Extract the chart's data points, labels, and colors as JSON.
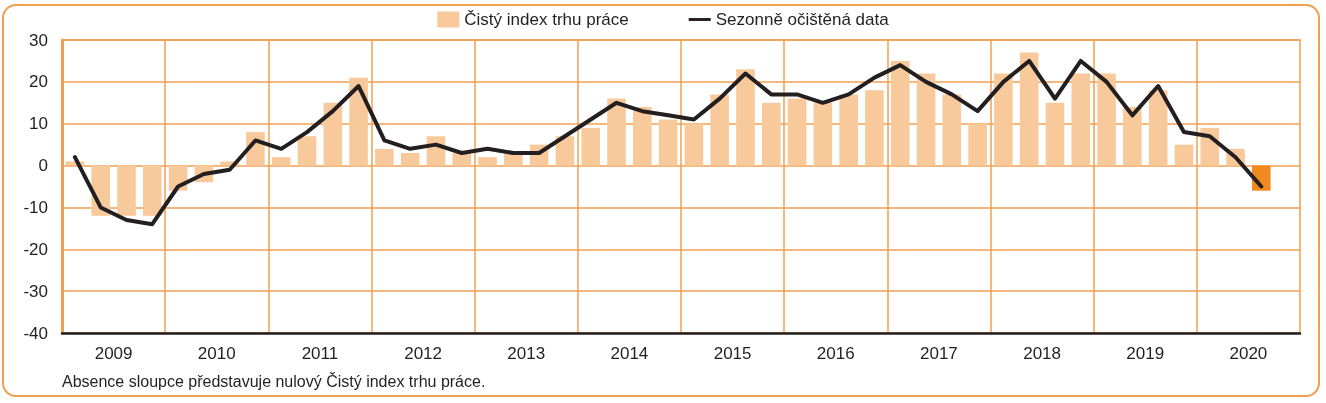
{
  "chart_data": {
    "type": "bar",
    "x": [
      2009.125,
      2009.375,
      2009.625,
      2009.875,
      2010.125,
      2010.375,
      2010.625,
      2010.875,
      2011.125,
      2011.375,
      2011.625,
      2011.875,
      2012.125,
      2012.375,
      2012.625,
      2012.875,
      2013.125,
      2013.375,
      2013.625,
      2013.875,
      2014.125,
      2014.375,
      2014.625,
      2014.875,
      2015.125,
      2015.375,
      2015.625,
      2015.875,
      2016.125,
      2016.375,
      2016.625,
      2016.875,
      2017.125,
      2017.375,
      2017.625,
      2017.875,
      2018.125,
      2018.375,
      2018.625,
      2018.875,
      2019.125,
      2019.375,
      2019.625,
      2019.875,
      2020.125,
      2020.375,
      2020.625
    ],
    "series": [
      {
        "name": "Čistý index trhu práce",
        "color": "#f8c99a",
        "colors": [
          "#f8c99a",
          "#f8c99a",
          "#f8c99a",
          "#f8c99a",
          "#f8c99a",
          "#f8c99a",
          "#f8c99a",
          "#f8c99a",
          "#f8c99a",
          "#f8c99a",
          "#f8c99a",
          "#f8c99a",
          "#f8c99a",
          "#f8c99a",
          "#f8c99a",
          "#f8c99a",
          "#f8c99a",
          "#f8c99a",
          "#f8c99a",
          "#f8c99a",
          "#f8c99a",
          "#f8c99a",
          "#f8c99a",
          "#f8c99a",
          "#f8c99a",
          "#f8c99a",
          "#f8c99a",
          "#f8c99a",
          "#f8c99a",
          "#f8c99a",
          "#f8c99a",
          "#f8c99a",
          "#f8c99a",
          "#f8c99a",
          "#f8c99a",
          "#f8c99a",
          "#f8c99a",
          "#f8c99a",
          "#f8c99a",
          "#f8c99a",
          "#f8c99a",
          "#f8c99a",
          "#f8c99a",
          "#f8c99a",
          "#f8c99a",
          "#f8c99a",
          "#f08a1e"
        ],
        "values": [
          1,
          -12,
          -12,
          -12,
          -6,
          -4,
          1,
          8,
          2,
          7,
          15,
          21,
          4,
          3,
          7,
          3,
          2,
          3,
          5,
          7,
          9,
          16,
          14,
          11,
          10,
          17,
          23,
          15,
          16,
          15,
          17,
          18,
          25,
          22,
          17,
          10,
          22,
          27,
          15,
          22,
          22,
          14,
          18,
          5,
          9,
          4,
          -6
        ]
      },
      {
        "name": "Sezonně očištěná data",
        "type": "line",
        "color": "#231f20",
        "values": [
          2,
          -10,
          -13,
          -14,
          -5,
          -2,
          -1,
          6,
          4,
          8,
          13,
          19,
          6,
          4,
          5,
          3,
          4,
          3,
          3,
          7,
          11,
          15,
          13,
          12,
          11,
          16,
          22,
          17,
          17,
          15,
          17,
          21,
          24,
          20,
          17,
          13,
          20,
          25,
          16,
          25,
          20,
          12,
          19,
          8,
          7,
          2,
          -5
        ]
      }
    ],
    "xlim": [
      2009,
      2021
    ],
    "xticks": [
      {
        "value": 2010,
        "label": null
      },
      {
        "value": 2011,
        "label": null
      },
      {
        "value": 2012,
        "label": null
      },
      {
        "value": 2013,
        "label": null
      },
      {
        "value": 2014,
        "label": null
      },
      {
        "value": 2015,
        "label": null
      },
      {
        "value": 2016,
        "label": null
      },
      {
        "value": 2017,
        "label": null
      },
      {
        "value": 2018,
        "label": null
      },
      {
        "value": 2019,
        "label": null
      },
      {
        "value": 2020,
        "label": null
      },
      {
        "value": 2009.5,
        "label": "2009"
      },
      {
        "value": 2010.5,
        "label": "2010"
      },
      {
        "value": 2011.5,
        "label": "2011"
      },
      {
        "value": 2012.5,
        "label": "2012"
      },
      {
        "value": 2013.5,
        "label": "2013"
      },
      {
        "value": 2014.5,
        "label": "2014"
      },
      {
        "value": 2015.5,
        "label": "2015"
      },
      {
        "value": 2016.5,
        "label": "2016"
      },
      {
        "value": 2017.5,
        "label": "2017"
      },
      {
        "value": 2018.5,
        "label": "2018"
      },
      {
        "value": 2019.5,
        "label": "2019"
      },
      {
        "value": 2020.5,
        "label": "2020"
      }
    ],
    "ylim": [
      -40,
      30
    ],
    "yticks": [
      -40,
      -30,
      -20,
      -10,
      0,
      10,
      20,
      30
    ],
    "grid": true,
    "legend": "top",
    "marker": "none",
    "line_style": "solid",
    "annotations": [
      "Absence sloupce představuje nulový Čistý index trhu práce."
    ]
  }
}
